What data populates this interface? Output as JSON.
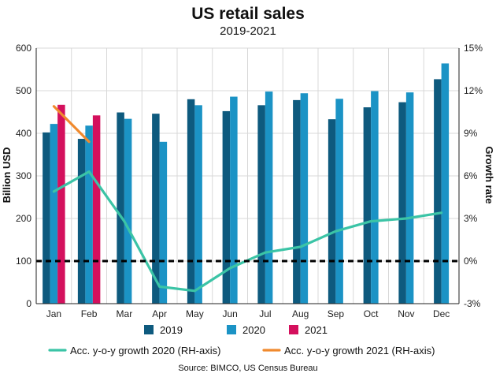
{
  "chart_data": {
    "type": "bar",
    "title": "US retail sales",
    "subtitle": "2019-2021",
    "ylabel": "Billion USD",
    "y2label": "Growth rate",
    "source": "Source: BIMCO, US Census Bureau",
    "categories": [
      "Jan",
      "Feb",
      "Mar",
      "Apr",
      "May",
      "Jun",
      "Jul",
      "Aug",
      "Sep",
      "Oct",
      "Nov",
      "Dec"
    ],
    "ylim": [
      0,
      600
    ],
    "yticks": [
      "0",
      "100",
      "200",
      "300",
      "400",
      "500",
      "600"
    ],
    "y2lim": [
      -3,
      15
    ],
    "y2ticks": [
      "-3%",
      "0%",
      "3%",
      "6%",
      "9%",
      "12%",
      "15%"
    ],
    "reference_line": {
      "axis": "y2",
      "value": 0,
      "style": "dashed"
    },
    "grid": true,
    "legend_position": "bottom",
    "series": [
      {
        "name": "2019",
        "kind": "bar",
        "color": "#0e5a7e",
        "values": [
          402,
          387,
          449,
          446,
          480,
          452,
          466,
          478,
          433,
          461,
          473,
          527
        ]
      },
      {
        "name": "2020",
        "kind": "bar",
        "color": "#1b93c5",
        "values": [
          422,
          418,
          434,
          380,
          466,
          486,
          498,
          494,
          481,
          499,
          496,
          564
        ]
      },
      {
        "name": "2021",
        "kind": "bar",
        "color": "#d4105d",
        "values": [
          467,
          442,
          null,
          null,
          null,
          null,
          null,
          null,
          null,
          null,
          null,
          null
        ]
      },
      {
        "name": "Acc. y-o-y growth 2020 (RH-axis)",
        "kind": "line",
        "axis": "y2",
        "color": "#3bc4a6",
        "values": [
          4.9,
          6.3,
          2.8,
          -1.8,
          -2.1,
          -0.5,
          0.6,
          1.0,
          2.1,
          2.8,
          3.0,
          3.4
        ]
      },
      {
        "name": "Acc. y-o-y growth 2021 (RH-axis)",
        "kind": "line",
        "axis": "y2",
        "color": "#f08a2e",
        "values": [
          10.9,
          8.4,
          null,
          null,
          null,
          null,
          null,
          null,
          null,
          null,
          null,
          null
        ]
      }
    ]
  }
}
